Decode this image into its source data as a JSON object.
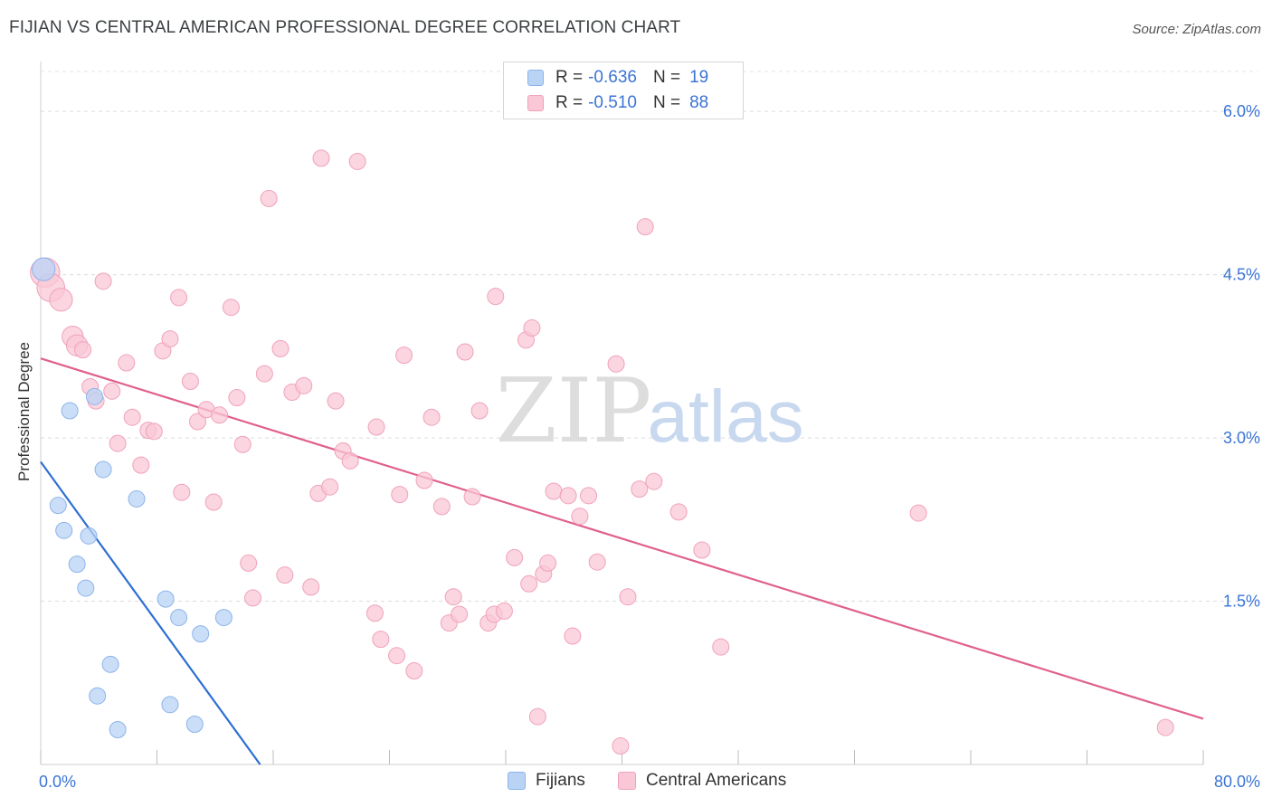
{
  "header": {
    "title": "FIJIAN VS CENTRAL AMERICAN PROFESSIONAL DEGREE CORRELATION CHART",
    "source": "Source: ZipAtlas.com"
  },
  "watermark": {
    "zip": "ZIP",
    "atlas": "atlas"
  },
  "legend": {
    "r_label": "R =",
    "n_label": "N =",
    "rows": [
      {
        "r": "-0.636",
        "n": "19",
        "fill": "#b9d3f5",
        "stroke": "#8cb4ea"
      },
      {
        "r": "-0.510",
        "n": "88",
        "fill": "#f9c7d6",
        "stroke": "#f0a2bb"
      }
    ]
  },
  "bottom_legend": {
    "fijians": "Fijians",
    "central_americans": "Central Americans"
  },
  "chart_data": {
    "type": "scatter",
    "title": "FIJIAN VS CENTRAL AMERICAN PROFESSIONAL DEGREE CORRELATION CHART",
    "xlabel": "",
    "ylabel": "Professional Degree",
    "xlim": [
      0,
      80
    ],
    "ylim": [
      0,
      6.4
    ],
    "x_tick_labels": [
      "0.0%",
      "80.0%"
    ],
    "y_ticks": [
      1.5,
      3.0,
      4.5,
      6.0
    ],
    "y_tick_labels": [
      "1.5%",
      "3.0%",
      "4.5%",
      "6.0%"
    ],
    "grid": true,
    "legend_position": "top-center",
    "series": [
      {
        "name": "Fijians",
        "color": "#8cb4ea",
        "fill": "#b9d3f5",
        "line_color": "#2d6fd2",
        "r": -0.636,
        "n": 19,
        "trend": [
          [
            0,
            2.78
          ],
          [
            15.1,
            0.0
          ]
        ],
        "points": [
          [
            0.2,
            4.55,
            1.4
          ],
          [
            2.0,
            3.25,
            1
          ],
          [
            3.7,
            3.38,
            1
          ],
          [
            1.2,
            2.38,
            1
          ],
          [
            1.6,
            2.15,
            1
          ],
          [
            3.3,
            2.1,
            1
          ],
          [
            4.3,
            2.71,
            1
          ],
          [
            6.6,
            2.44,
            1
          ],
          [
            2.5,
            1.84,
            1
          ],
          [
            3.1,
            1.62,
            1
          ],
          [
            8.6,
            1.52,
            1
          ],
          [
            9.5,
            1.35,
            1
          ],
          [
            12.6,
            1.35,
            1
          ],
          [
            11.0,
            1.2,
            1
          ],
          [
            4.8,
            0.92,
            1
          ],
          [
            3.9,
            0.63,
            1
          ],
          [
            8.9,
            0.55,
            1
          ],
          [
            5.3,
            0.32,
            1
          ],
          [
            10.6,
            0.37,
            1
          ]
        ]
      },
      {
        "name": "Central Americans",
        "color": "#f0a2bb",
        "fill": "#f9c7d6",
        "line_color": "#e0608d",
        "r": -0.51,
        "n": 88,
        "trend": [
          [
            0,
            3.73
          ],
          [
            80,
            0.42
          ]
        ],
        "points": [
          [
            0.3,
            4.52,
            1.8
          ],
          [
            0.7,
            4.38,
            1.7
          ],
          [
            1.4,
            4.27,
            1.4
          ],
          [
            2.2,
            3.93,
            1.3
          ],
          [
            2.5,
            3.85,
            1.3
          ],
          [
            2.9,
            3.81,
            1
          ],
          [
            4.3,
            4.44,
            1
          ],
          [
            3.4,
            3.47,
            1
          ],
          [
            3.8,
            3.34,
            1
          ],
          [
            4.9,
            3.43,
            1
          ],
          [
            5.9,
            3.69,
            1
          ],
          [
            6.3,
            3.19,
            1
          ],
          [
            7.4,
            3.07,
            1
          ],
          [
            7.8,
            3.06,
            1
          ],
          [
            5.3,
            2.95,
            1
          ],
          [
            6.9,
            2.75,
            1
          ],
          [
            8.4,
            3.8,
            1
          ],
          [
            8.9,
            3.91,
            1
          ],
          [
            9.5,
            4.29,
            1
          ],
          [
            10.3,
            3.52,
            1
          ],
          [
            10.8,
            3.15,
            1
          ],
          [
            11.4,
            3.26,
            1
          ],
          [
            12.3,
            3.21,
            1
          ],
          [
            13.1,
            4.2,
            1
          ],
          [
            13.5,
            3.37,
            1
          ],
          [
            9.7,
            2.5,
            1
          ],
          [
            11.9,
            2.41,
            1
          ],
          [
            13.9,
            2.94,
            1
          ],
          [
            15.4,
            3.59,
            1
          ],
          [
            16.5,
            3.82,
            1
          ],
          [
            17.3,
            3.42,
            1
          ],
          [
            18.1,
            3.48,
            1
          ],
          [
            19.1,
            2.49,
            1
          ],
          [
            19.9,
            2.55,
            1
          ],
          [
            20.3,
            3.34,
            1
          ],
          [
            20.8,
            2.88,
            1
          ],
          [
            21.3,
            2.79,
            1
          ],
          [
            15.7,
            5.2,
            1
          ],
          [
            19.3,
            5.57,
            1
          ],
          [
            21.8,
            5.54,
            1
          ],
          [
            14.3,
            1.85,
            1
          ],
          [
            14.6,
            1.53,
            1
          ],
          [
            16.8,
            1.74,
            1
          ],
          [
            18.6,
            1.63,
            1
          ],
          [
            23.0,
            1.39,
            1
          ],
          [
            23.4,
            1.15,
            1
          ],
          [
            24.5,
            1.0,
            1
          ],
          [
            25.7,
            0.86,
            1
          ],
          [
            23.1,
            3.1,
            1
          ],
          [
            24.7,
            2.48,
            1
          ],
          [
            25.0,
            3.76,
            1
          ],
          [
            26.4,
            2.61,
            1
          ],
          [
            26.9,
            3.19,
            1
          ],
          [
            27.6,
            2.37,
            1
          ],
          [
            28.1,
            1.3,
            1
          ],
          [
            28.4,
            1.54,
            1
          ],
          [
            28.8,
            1.38,
            1
          ],
          [
            29.2,
            3.79,
            1
          ],
          [
            29.7,
            2.46,
            1
          ],
          [
            30.2,
            3.25,
            1
          ],
          [
            30.8,
            1.3,
            1
          ],
          [
            31.2,
            1.38,
            1
          ],
          [
            31.9,
            1.41,
            1
          ],
          [
            31.3,
            4.3,
            1
          ],
          [
            32.6,
            1.9,
            1
          ],
          [
            33.4,
            3.9,
            1
          ],
          [
            33.8,
            4.01,
            1
          ],
          [
            33.6,
            1.66,
            1
          ],
          [
            34.6,
            1.75,
            1
          ],
          [
            34.9,
            1.85,
            1
          ],
          [
            35.3,
            2.51,
            1
          ],
          [
            36.3,
            2.47,
            1
          ],
          [
            37.1,
            2.28,
            1
          ],
          [
            37.7,
            2.47,
            1
          ],
          [
            38.3,
            1.86,
            1
          ],
          [
            36.6,
            1.18,
            1
          ],
          [
            34.2,
            0.44,
            1
          ],
          [
            39.6,
            3.68,
            1
          ],
          [
            40.4,
            1.54,
            1
          ],
          [
            41.2,
            2.53,
            1
          ],
          [
            41.6,
            4.94,
            1
          ],
          [
            42.2,
            2.6,
            1
          ],
          [
            43.9,
            2.32,
            1
          ],
          [
            45.5,
            1.97,
            1
          ],
          [
            46.8,
            1.08,
            1
          ],
          [
            39.9,
            0.17,
            1
          ],
          [
            60.4,
            2.31,
            1
          ],
          [
            77.4,
            0.34,
            1
          ]
        ]
      }
    ]
  }
}
